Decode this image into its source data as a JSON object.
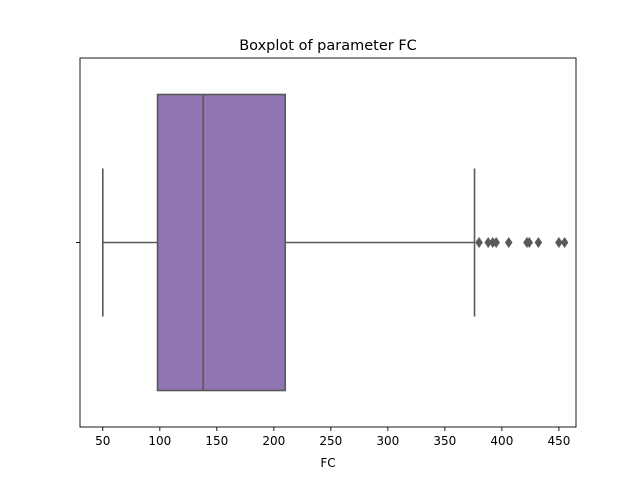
{
  "chart_data": {
    "type": "boxplot",
    "title": "Boxplot of parameter FC",
    "xlabel": "FC",
    "ylabel": "",
    "xlim": [
      30,
      465
    ],
    "xticks": [
      50,
      100,
      150,
      200,
      250,
      300,
      350,
      400,
      450
    ],
    "xtick_labels": [
      "50",
      "100",
      "150",
      "200",
      "250",
      "300",
      "350",
      "400",
      "450"
    ],
    "grid": false,
    "box": {
      "whisker_low": 50,
      "q1": 98,
      "median": 138,
      "q3": 210,
      "whisker_high": 376,
      "outliers": [
        380,
        388,
        392,
        395,
        406,
        422,
        424,
        432,
        450,
        455
      ]
    },
    "colors": {
      "box_fill": "#9174b2",
      "line": "#595959",
      "axis": "#000000"
    }
  }
}
